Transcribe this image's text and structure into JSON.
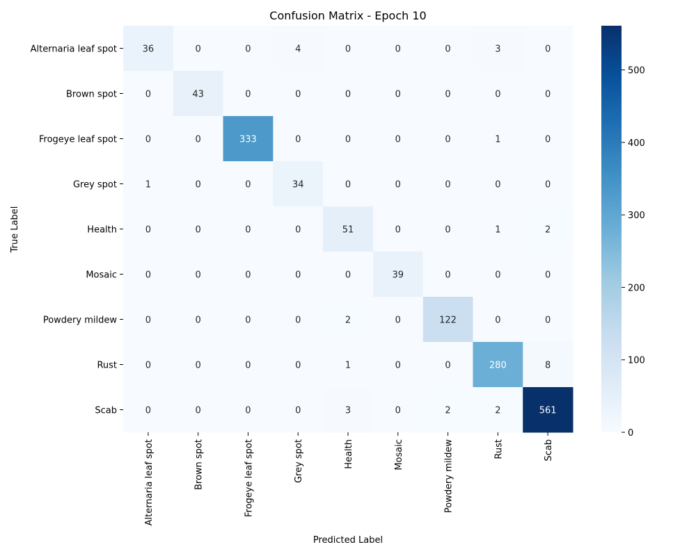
{
  "chart_data": {
    "type": "heatmap",
    "title": "Confusion Matrix - Epoch 10",
    "xlabel": "Predicted Label",
    "ylabel": "True Label",
    "rows": [
      "Alternaria leaf spot",
      "Brown spot",
      "Frogeye leaf spot",
      "Grey spot",
      "Health",
      "Mosaic",
      "Powdery mildew",
      "Rust",
      "Scab"
    ],
    "columns": [
      "Alternaria leaf spot",
      "Brown spot",
      "Frogeye leaf spot",
      "Grey spot",
      "Health",
      "Mosaic",
      "Powdery mildew",
      "Rust",
      "Scab"
    ],
    "values": [
      [
        36,
        0,
        0,
        4,
        0,
        0,
        0,
        3,
        0
      ],
      [
        0,
        43,
        0,
        0,
        0,
        0,
        0,
        0,
        0
      ],
      [
        0,
        0,
        333,
        0,
        0,
        0,
        0,
        1,
        0
      ],
      [
        1,
        0,
        0,
        34,
        0,
        0,
        0,
        0,
        0
      ],
      [
        0,
        0,
        0,
        0,
        51,
        0,
        0,
        1,
        2
      ],
      [
        0,
        0,
        0,
        0,
        0,
        39,
        0,
        0,
        0
      ],
      [
        0,
        0,
        0,
        0,
        2,
        0,
        122,
        0,
        0
      ],
      [
        0,
        0,
        0,
        0,
        1,
        0,
        0,
        280,
        8
      ],
      [
        0,
        0,
        0,
        0,
        3,
        0,
        2,
        2,
        561
      ]
    ],
    "colormap": "Blues",
    "colorbar": {
      "range": [
        0,
        561
      ],
      "ticks": [
        0,
        100,
        200,
        300,
        400,
        500
      ]
    }
  }
}
